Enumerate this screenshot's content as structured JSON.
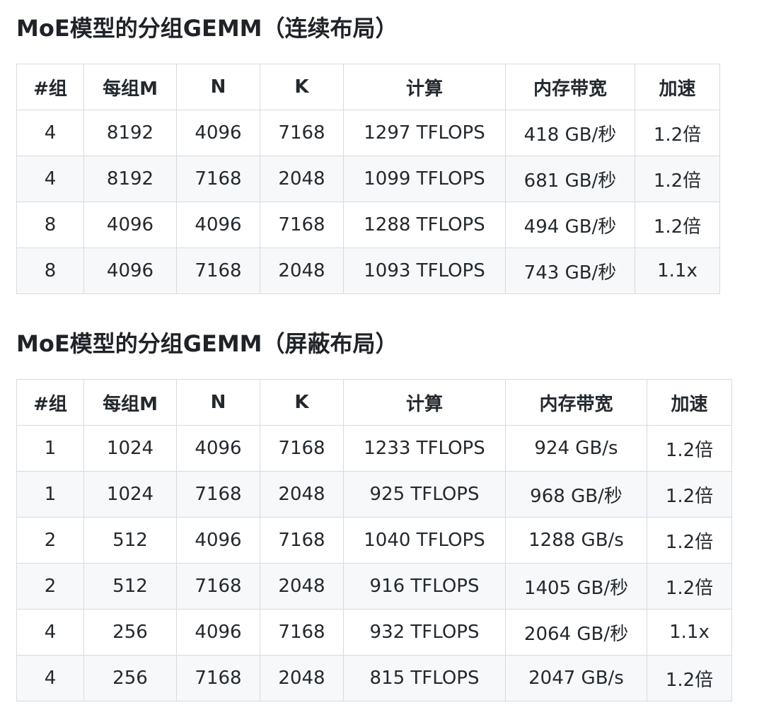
{
  "sections": [
    {
      "title": "MoE模型的分组GEMM（连续布局）",
      "headers": [
        "#组",
        "每组M",
        "N",
        "K",
        "计算",
        "内存带宽",
        "加速"
      ],
      "rows": [
        [
          "4",
          "8192",
          "4096",
          "7168",
          "1297 TFLOPS",
          "418 GB/秒",
          "1.2倍"
        ],
        [
          "4",
          "8192",
          "7168",
          "2048",
          "1099 TFLOPS",
          "681 GB/秒",
          "1.2倍"
        ],
        [
          "8",
          "4096",
          "4096",
          "7168",
          "1288 TFLOPS",
          "494 GB/秒",
          "1.2倍"
        ],
        [
          "8",
          "4096",
          "7168",
          "2048",
          "1093 TFLOPS",
          "743 GB/秒",
          "1.1x"
        ]
      ]
    },
    {
      "title": "MoE模型的分组GEMM（屏蔽布局）",
      "headers": [
        "#组",
        "每组M",
        "N",
        "K",
        "计算",
        "内存带宽",
        "加速"
      ],
      "rows": [
        [
          "1",
          "1024",
          "4096",
          "7168",
          "1233 TFLOPS",
          "924 GB/s",
          "1.2倍"
        ],
        [
          "1",
          "1024",
          "7168",
          "2048",
          "925 TFLOPS",
          "968 GB/秒",
          "1.2倍"
        ],
        [
          "2",
          "512",
          "4096",
          "7168",
          "1040 TFLOPS",
          "1288 GB/s",
          "1.2倍"
        ],
        [
          "2",
          "512",
          "7168",
          "2048",
          "916 TFLOPS",
          "1405 GB/秒",
          "1.2倍"
        ],
        [
          "4",
          "256",
          "4096",
          "7168",
          "932 TFLOPS",
          "2064 GB/秒",
          "1.1x"
        ],
        [
          "4",
          "256",
          "7168",
          "2048",
          "815 TFLOPS",
          "2047 GB/s",
          "1.2倍"
        ]
      ]
    }
  ]
}
